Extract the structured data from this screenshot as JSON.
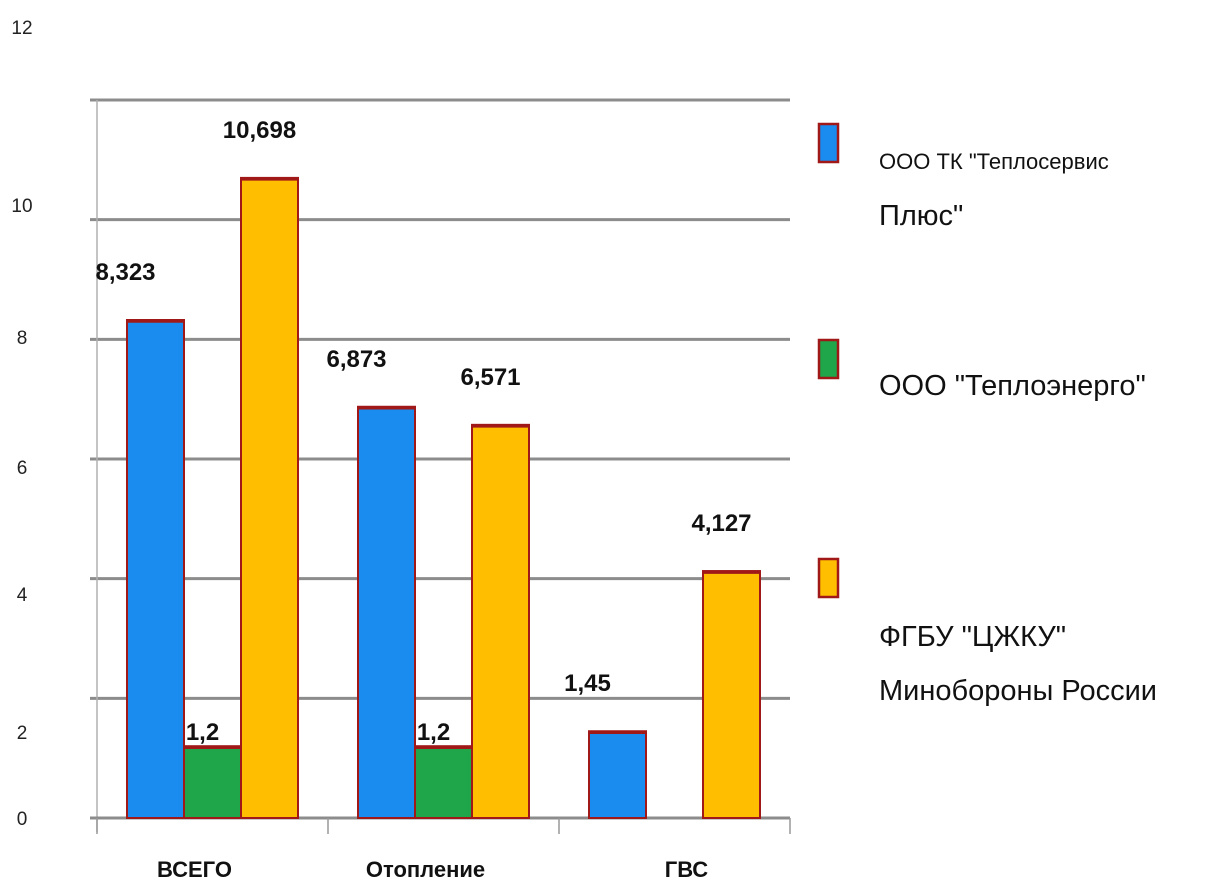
{
  "chart_data": {
    "type": "bar",
    "categories": [
      "ВСЕГО",
      "Отопление",
      "ГВС"
    ],
    "series": [
      {
        "name": "ООО ТК \"Теплосервис Плюс\"",
        "values": [
          8.323,
          6.873,
          1.45
        ],
        "color": "#1a8cf0"
      },
      {
        "name": "ООО \"Теплоэнерго\"",
        "values": [
          1.2,
          1.2,
          null
        ],
        "color": "#1fa64a"
      },
      {
        "name": "ФГБУ \"ЦЖКУ\" Минобороны России",
        "values": [
          10.698,
          6.571,
          4.127
        ],
        "color": "#ffbf00"
      }
    ],
    "data_labels": [
      [
        "8,323",
        "6,873",
        "1,45"
      ],
      [
        "1,2",
        "1,2",
        ""
      ],
      [
        "10,698",
        "6,571",
        "4,127"
      ]
    ],
    "y_tick_labels": [
      "0",
      "2",
      "4",
      "6",
      "8",
      "10",
      "12"
    ],
    "ylim": [
      0,
      12
    ],
    "grid": true,
    "legend_position": "right",
    "legend_lines": [
      [
        "ООО ТК \"Теплосервис",
        "Плюс\""
      ],
      [
        "ООО \"Теплоэнерго\""
      ],
      [
        "ФГБУ \"ЦЖКУ\"",
        "Минобороны России"
      ]
    ],
    "bar_border_color": "#a01818",
    "gridline_color": "#8c8c8c"
  }
}
